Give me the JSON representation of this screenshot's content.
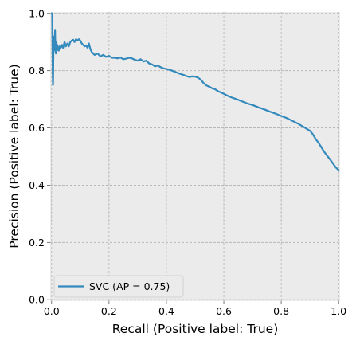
{
  "chart_data": {
    "type": "line",
    "title": "",
    "xlabel": "Recall (Positive label: True)",
    "ylabel": "Precision (Positive label: True)",
    "xlim": [
      0.0,
      1.0
    ],
    "ylim": [
      0.0,
      1.0
    ],
    "xticks": [
      "0.0",
      "0.2",
      "0.4",
      "0.6",
      "0.8",
      "1.0"
    ],
    "yticks": [
      "0.0",
      "0.2",
      "0.4",
      "0.6",
      "0.8",
      "1.0"
    ],
    "grid": true,
    "legend_position": "lower-left",
    "style": {
      "background": "#ebebeb",
      "grid_color": "#b0b0b0",
      "line_color": "#348abd"
    },
    "series": [
      {
        "name": "SVC (AP = 0.75)",
        "x": [
          0.0,
          0.002,
          0.003,
          0.004,
          0.005,
          0.006,
          0.007,
          0.008,
          0.009,
          0.01,
          0.012,
          0.013,
          0.015,
          0.017,
          0.018,
          0.02,
          0.022,
          0.025,
          0.028,
          0.032,
          0.036,
          0.04,
          0.045,
          0.05,
          0.055,
          0.06,
          0.065,
          0.07,
          0.075,
          0.08,
          0.085,
          0.09,
          0.095,
          0.1,
          0.105,
          0.11,
          0.115,
          0.12,
          0.125,
          0.13,
          0.135,
          0.14,
          0.15,
          0.16,
          0.17,
          0.18,
          0.19,
          0.2,
          0.21,
          0.22,
          0.23,
          0.24,
          0.25,
          0.26,
          0.27,
          0.28,
          0.29,
          0.3,
          0.31,
          0.32,
          0.33,
          0.34,
          0.35,
          0.36,
          0.37,
          0.38,
          0.39,
          0.4,
          0.41,
          0.42,
          0.43,
          0.44,
          0.45,
          0.46,
          0.47,
          0.48,
          0.49,
          0.5,
          0.51,
          0.52,
          0.53,
          0.54,
          0.55,
          0.56,
          0.57,
          0.58,
          0.59,
          0.6,
          0.62,
          0.64,
          0.66,
          0.68,
          0.7,
          0.72,
          0.74,
          0.76,
          0.78,
          0.8,
          0.82,
          0.84,
          0.86,
          0.88,
          0.9,
          0.91,
          0.92,
          0.93,
          0.94,
          0.95,
          0.96,
          0.97,
          0.98,
          0.99,
          1.0
        ],
        "y": [
          1.0,
          1.0,
          0.89,
          0.78,
          0.75,
          0.84,
          0.9,
          0.87,
          0.92,
          0.89,
          0.94,
          0.88,
          0.86,
          0.9,
          0.87,
          0.89,
          0.88,
          0.87,
          0.885,
          0.88,
          0.89,
          0.88,
          0.9,
          0.885,
          0.895,
          0.885,
          0.9,
          0.905,
          0.908,
          0.9,
          0.91,
          0.905,
          0.91,
          0.905,
          0.895,
          0.89,
          0.885,
          0.888,
          0.88,
          0.895,
          0.875,
          0.865,
          0.855,
          0.86,
          0.85,
          0.855,
          0.848,
          0.852,
          0.845,
          0.845,
          0.843,
          0.846,
          0.84,
          0.842,
          0.845,
          0.843,
          0.838,
          0.835,
          0.84,
          0.832,
          0.835,
          0.825,
          0.822,
          0.815,
          0.818,
          0.812,
          0.808,
          0.806,
          0.803,
          0.8,
          0.796,
          0.792,
          0.788,
          0.785,
          0.781,
          0.778,
          0.78,
          0.779,
          0.776,
          0.768,
          0.756,
          0.748,
          0.744,
          0.738,
          0.735,
          0.728,
          0.724,
          0.719,
          0.709,
          0.702,
          0.694,
          0.686,
          0.68,
          0.672,
          0.665,
          0.657,
          0.65,
          0.642,
          0.634,
          0.624,
          0.614,
          0.602,
          0.59,
          0.578,
          0.561,
          0.548,
          0.532,
          0.516,
          0.503,
          0.49,
          0.476,
          0.462,
          0.453
        ]
      }
    ]
  }
}
